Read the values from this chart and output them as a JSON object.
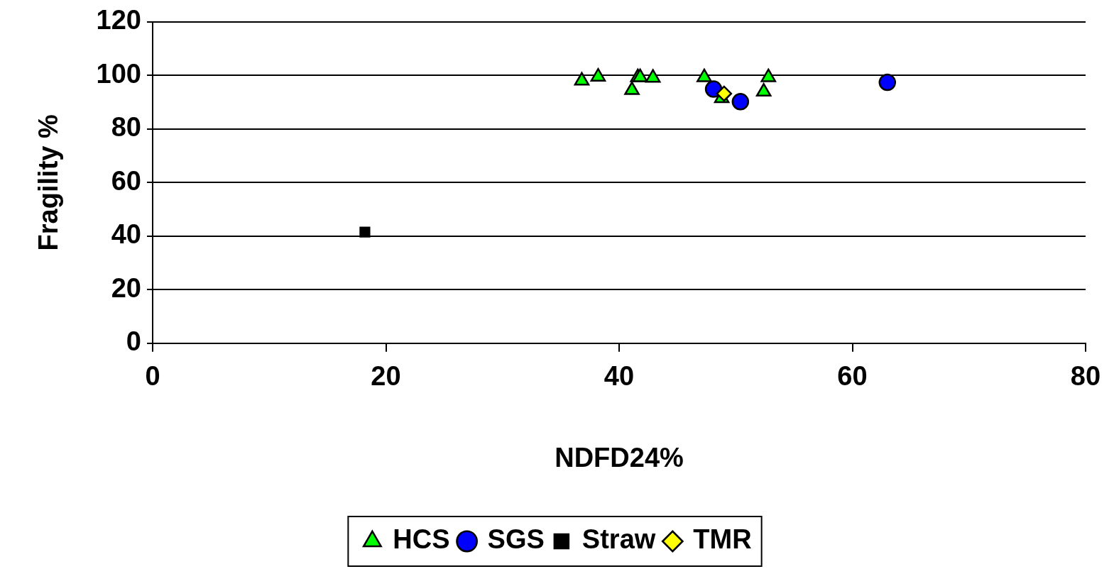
{
  "chart_data": {
    "type": "scatter",
    "xlabel": "NDFD24%",
    "ylabel": "Fragility %",
    "xlim": [
      0,
      80
    ],
    "xticks": [
      0,
      20,
      40,
      60,
      80
    ],
    "ylim": [
      0,
      120
    ],
    "yticks": [
      0,
      20,
      40,
      60,
      80,
      100,
      120
    ],
    "grid": "y",
    "legend": "bottom",
    "series": [
      {
        "name": "HCS",
        "color": "#00ff00",
        "marker": "triangle",
        "x": [
          36.8,
          38.2,
          41.6,
          41.8,
          41.1,
          42.9,
          47.3,
          48.8,
          52.8,
          52.4
        ],
        "values": [
          98.0,
          99.5,
          99.3,
          99.3,
          94.5,
          99.1,
          99.3,
          91.5,
          99.3,
          93.9
        ]
      },
      {
        "name": "SGS",
        "color": "#0000ff",
        "marker": "circle",
        "x": [
          48.1,
          50.4,
          63.0
        ],
        "values": [
          94.9,
          90.2,
          97.4
        ]
      },
      {
        "name": "Straw",
        "color": "#000000",
        "marker": "square",
        "x": [
          18.2
        ],
        "values": [
          41.5
        ]
      },
      {
        "name": "TMR",
        "color": "#ffff00",
        "marker": "diamond",
        "x": [
          49.0
        ],
        "values": [
          93.2
        ]
      }
    ]
  }
}
